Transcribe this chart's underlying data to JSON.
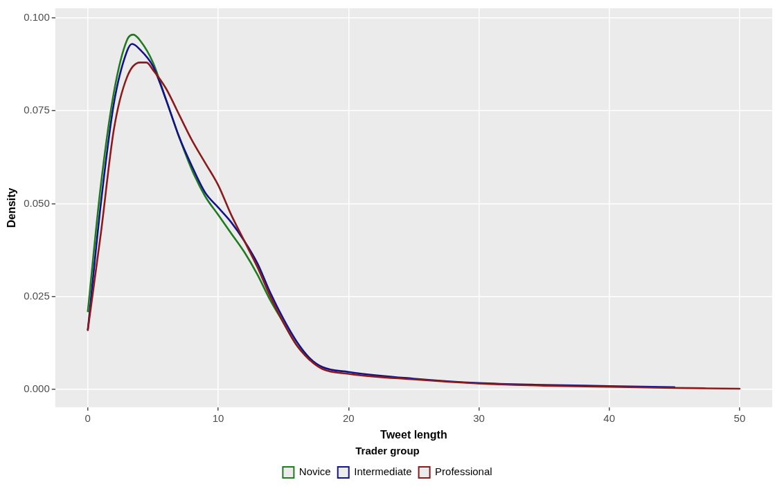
{
  "chart_data": {
    "type": "line",
    "xlabel": "Tweet length",
    "ylabel": "Density",
    "legend_title": "Trader group",
    "legend": "bottom",
    "grid": true,
    "marker": "none",
    "line_style": "solid",
    "xlim": [
      -2.5,
      52.5
    ],
    "xticks": [
      0,
      10,
      20,
      30,
      40,
      50
    ],
    "ylim": [
      -0.0048,
      0.1026
    ],
    "yticks": [
      {
        "value": 0,
        "label": "0.000"
      },
      {
        "value": 0.025,
        "label": "0.025"
      },
      {
        "value": 0.05,
        "label": "0.050"
      },
      {
        "value": 0.075,
        "label": "0.075"
      },
      {
        "value": 0.1,
        "label": "0.100"
      }
    ],
    "series": [
      {
        "name": "Novice",
        "color": "#1e7b1e",
        "x": [
          0,
          1,
          2,
          3,
          3.5,
          4,
          5,
          6,
          7,
          8,
          9,
          10,
          11,
          12,
          13,
          14,
          15,
          16,
          17
        ],
        "values": [
          0.021,
          0.055,
          0.08,
          0.094,
          0.0955,
          0.094,
          0.088,
          0.078,
          0.068,
          0.059,
          0.052,
          0.047,
          0.042,
          0.037,
          0.031,
          0.024,
          0.018,
          0.012,
          0.008
        ]
      },
      {
        "name": "Intermediate",
        "color": "#12128c",
        "x": [
          0,
          1,
          2,
          3,
          3.4,
          4,
          5,
          6,
          7,
          8,
          9,
          10,
          11,
          12,
          13,
          14,
          15,
          16,
          17,
          18,
          20,
          25,
          30,
          35,
          40,
          45
        ],
        "values": [
          0.016,
          0.05,
          0.077,
          0.091,
          0.093,
          0.0915,
          0.087,
          0.078,
          0.068,
          0.06,
          0.053,
          0.049,
          0.045,
          0.04,
          0.034,
          0.026,
          0.019,
          0.013,
          0.0085,
          0.006,
          0.0047,
          0.0029,
          0.0017,
          0.0012,
          0.0009,
          0.0006
        ]
      },
      {
        "name": "Professional",
        "color": "#8b1a1a",
        "x": [
          0,
          1,
          2,
          3,
          4,
          4.5,
          5,
          6,
          7,
          8,
          9,
          10,
          11,
          12,
          13,
          14,
          15,
          16,
          17,
          18,
          20,
          25,
          30,
          35,
          40,
          45,
          50
        ],
        "values": [
          0.016,
          0.042,
          0.07,
          0.084,
          0.088,
          0.088,
          0.086,
          0.081,
          0.074,
          0.067,
          0.061,
          0.055,
          0.047,
          0.04,
          0.033,
          0.025,
          0.018,
          0.012,
          0.008,
          0.0055,
          0.0042,
          0.0027,
          0.0016,
          0.001,
          0.0007,
          0.0004,
          0.0002
        ]
      }
    ]
  }
}
